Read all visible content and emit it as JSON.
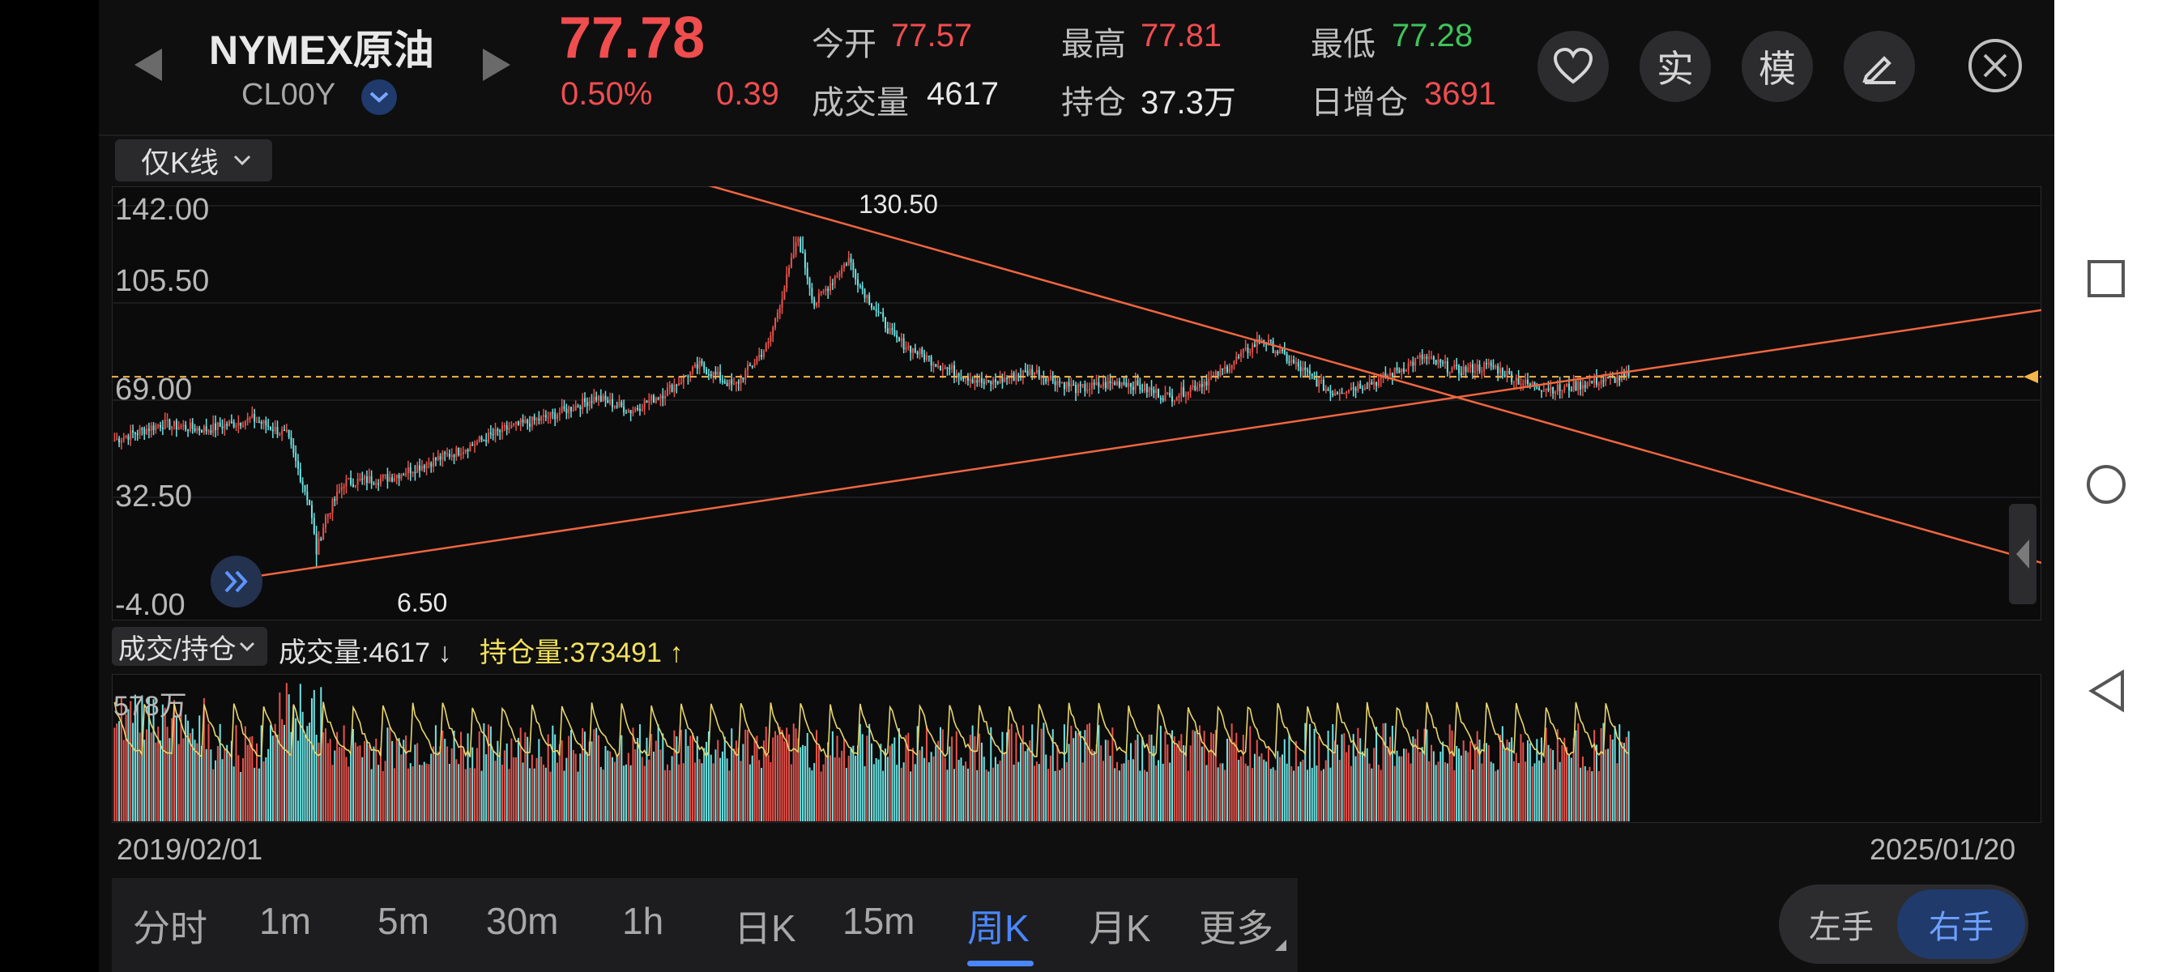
{
  "header": {
    "name": "NYMEX原油",
    "code": "CL00Y",
    "price": "77.78",
    "change_pct": "0.50%",
    "change_abs": "0.39",
    "open_label": "今开",
    "open_value": "77.57",
    "high_label": "最高",
    "high_value": "77.81",
    "low_label": "最低",
    "low_value": "77.28",
    "volume_label": "成交量",
    "volume_value": "4617",
    "oi_label": "持仓",
    "oi_value": "37.3万",
    "oi_change_label": "日增仓",
    "oi_change_value": "3691",
    "btn_real": "实",
    "btn_sim": "模"
  },
  "chart_toolbar": {
    "kline_only": "仅K线"
  },
  "price_chart": {
    "y_labels": [
      "142.00",
      "105.50",
      "69.00",
      "32.50",
      "-4.00"
    ],
    "max_label": "130.50",
    "min_label": "6.50"
  },
  "volume_panel": {
    "selector_label": "成交/持仓",
    "volume_text": "成交量:4617",
    "oi_text": "持仓量:373491",
    "y_max_label": "578万"
  },
  "date_range": {
    "start": "2019/02/01",
    "end": "2025/01/20"
  },
  "period_tabs": [
    "分时",
    "1m",
    "5m",
    "30m",
    "1h",
    "日K",
    "15m",
    "周K",
    "月K",
    "更多"
  ],
  "active_tab": "周K",
  "hand_toggle": {
    "left": "左手",
    "right": "右手"
  },
  "chart_data": {
    "type": "candlestick",
    "x_range": [
      "2019/02/01",
      "2025/01/20"
    ],
    "ylim": [
      -4.0,
      142.0
    ],
    "max_price": 130.5,
    "min_price": 6.5,
    "last_price": 77.78,
    "anchor_closes": [
      [
        0,
        54
      ],
      [
        20,
        60
      ],
      [
        40,
        58
      ],
      [
        60,
        62
      ],
      [
        75,
        56
      ],
      [
        85,
        30
      ],
      [
        88,
        12
      ],
      [
        92,
        25
      ],
      [
        100,
        38
      ],
      [
        120,
        40
      ],
      [
        135,
        45
      ],
      [
        150,
        50
      ],
      [
        170,
        58
      ],
      [
        190,
        63
      ],
      [
        210,
        70
      ],
      [
        225,
        65
      ],
      [
        240,
        72
      ],
      [
        255,
        82
      ],
      [
        270,
        74
      ],
      [
        285,
        90
      ],
      [
        298,
        130
      ],
      [
        305,
        105
      ],
      [
        320,
        122
      ],
      [
        325,
        112
      ],
      [
        340,
        92
      ],
      [
        360,
        82
      ],
      [
        380,
        75
      ],
      [
        400,
        80
      ],
      [
        420,
        73
      ],
      [
        440,
        76
      ],
      [
        460,
        70
      ],
      [
        480,
        78
      ],
      [
        500,
        92
      ],
      [
        515,
        82
      ],
      [
        530,
        72
      ],
      [
        550,
        76
      ],
      [
        570,
        85
      ],
      [
        585,
        80
      ],
      [
        600,
        82
      ],
      [
        615,
        75
      ],
      [
        630,
        73
      ],
      [
        645,
        76
      ],
      [
        660,
        77.78
      ]
    ],
    "volume_max_label": "578万",
    "colors": {
      "up": "#e8524a",
      "down": "#6fe3e3",
      "oi_line": "#e8d66a",
      "trend": "#f0663f",
      "price_line": "#f5b54a"
    }
  },
  "colors": {
    "accent_blue": "#4a87ff",
    "up_red": "#f04d4f",
    "down_green": "#3ec45a"
  }
}
